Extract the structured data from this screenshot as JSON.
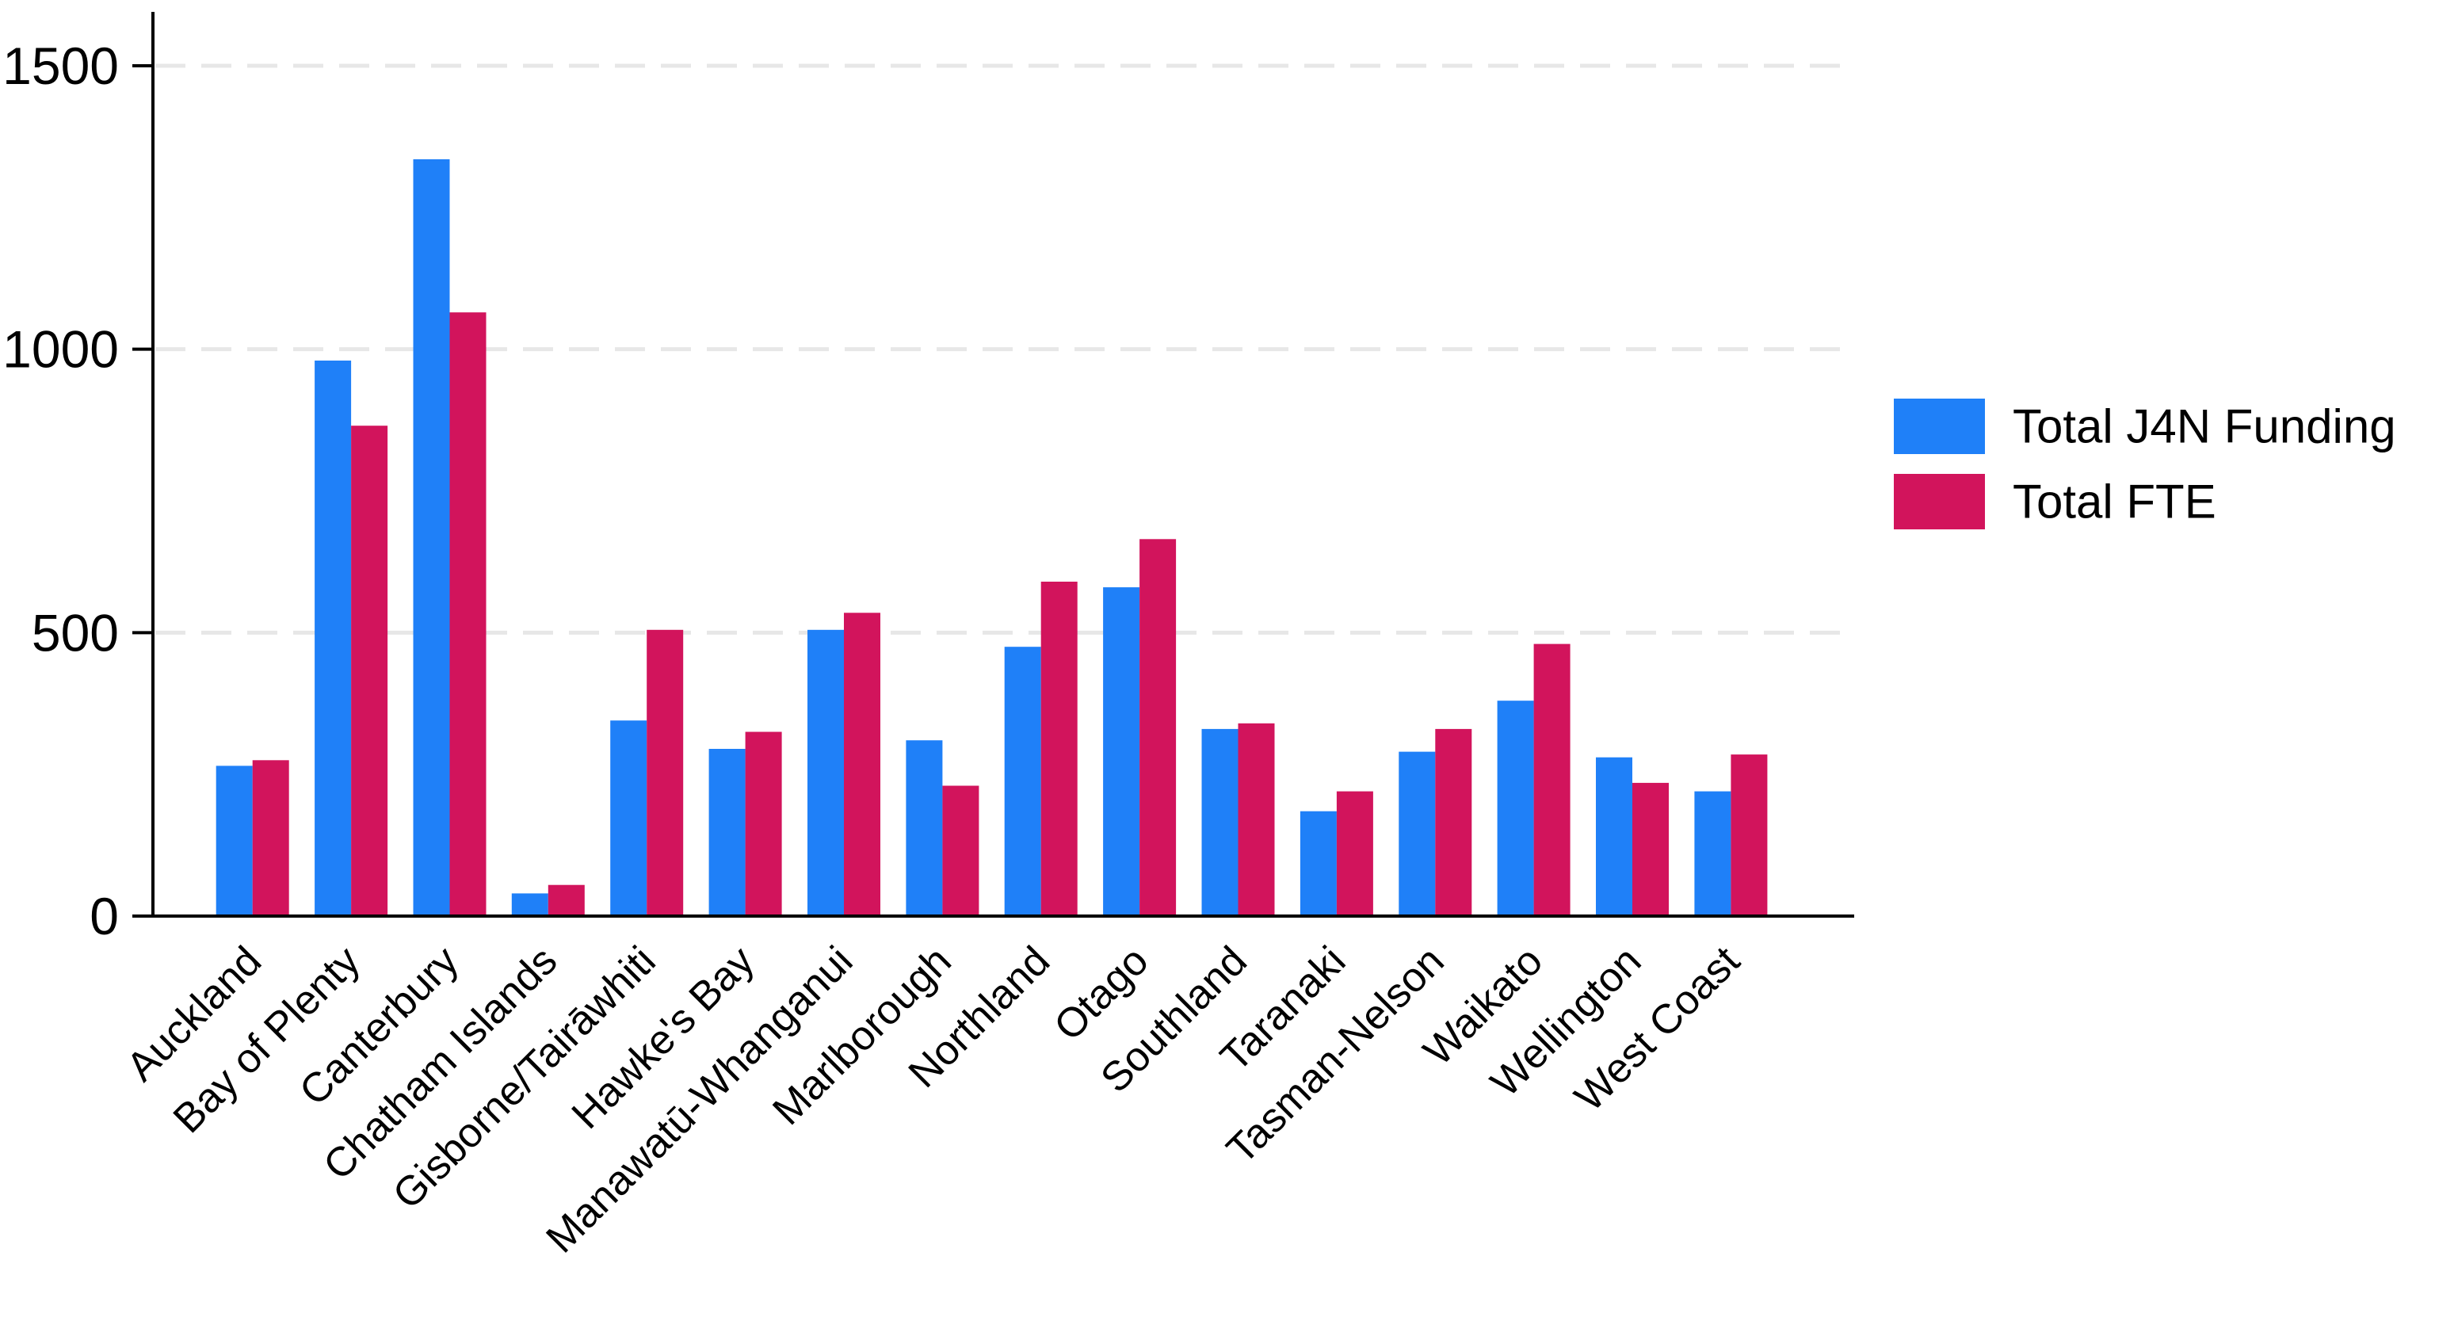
{
  "chart_data": {
    "type": "bar",
    "subtype": "grouped-vertical",
    "title": "",
    "xlabel": "",
    "ylabel": "",
    "categories": [
      "Auckland",
      "Bay of Plenty",
      "Canterbury",
      "Chatham Islands",
      "Gisborne/Tairāwhiti",
      "Hawke's Bay",
      "Manawatū-Whanganui",
      "Marlborough",
      "Northland",
      "Otago",
      "Southland",
      "Taranaki",
      "Tasman-Nelson",
      "Waikato",
      "Wellington",
      "West Coast"
    ],
    "series": [
      {
        "name": "Total J4N Funding",
        "color": "#1F80F8",
        "values": [
          265,
          980,
          1335,
          40,
          345,
          295,
          505,
          310,
          475,
          580,
          330,
          185,
          290,
          380,
          280,
          220
        ]
      },
      {
        "name": "Total FTE",
        "color": "#D2145C",
        "values": [
          275,
          865,
          1065,
          55,
          505,
          325,
          535,
          230,
          590,
          665,
          340,
          220,
          330,
          480,
          235,
          285
        ]
      }
    ],
    "ylim": [
      0,
      1500
    ],
    "y_ticks": [
      0,
      500,
      1000,
      1500
    ],
    "y_tick_labels": [
      "0",
      "500",
      "1000",
      "1500"
    ],
    "x_tick_rotation_deg": -45,
    "grid": "horizontal-dashed",
    "gridline_color": "#E7E7E7",
    "axis_color": "#000000",
    "tick_label_color": "#000000",
    "background_color": "#FFFFFF",
    "legend_position": "right"
  }
}
